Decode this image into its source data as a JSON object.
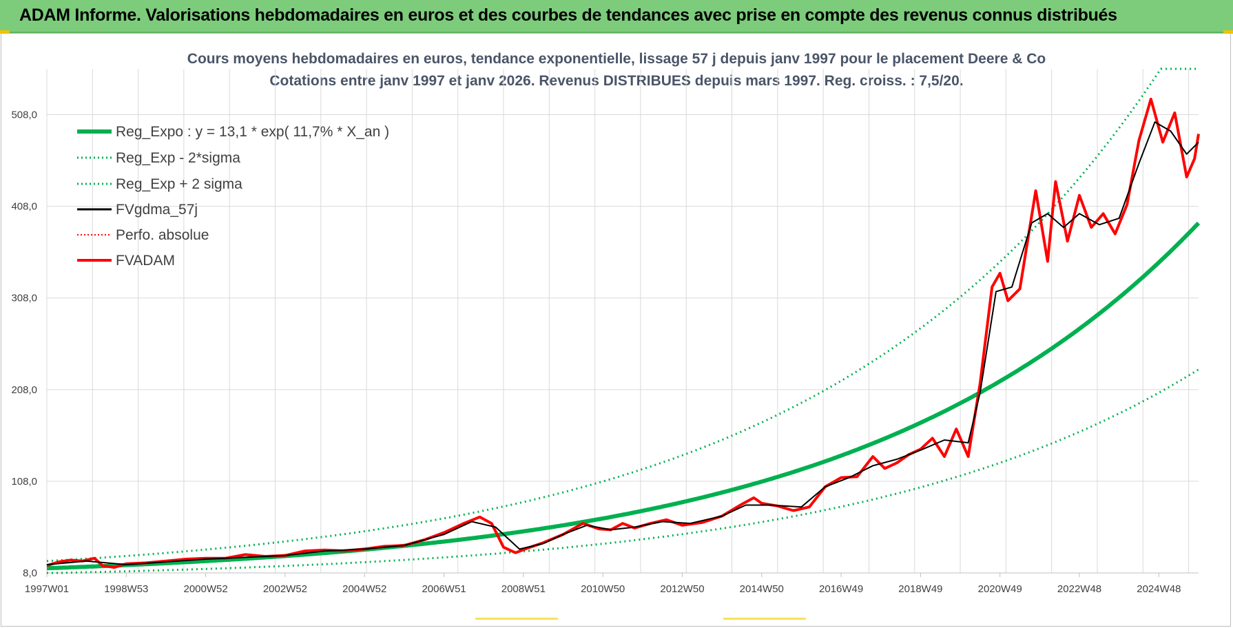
{
  "header": {
    "title": "ADAM Informe. Valorisations hebdomadaires en euros et des courbes de tendances avec prise en compte des revenus connus distribués"
  },
  "colors": {
    "banner": "#7ccc7c",
    "reg_expo": "#00b050",
    "sigma": "#00b050",
    "fvgdma": "#000000",
    "perfo": "#ff0000",
    "fvadam": "#ff0000",
    "grid": "#d9d9d9"
  },
  "chart_data": {
    "type": "line",
    "title": [
      "Cours moyens hebdomadaires en euros, tendance exponentielle, lissage 57 j depuis janv 1997 pour le placement Deere & Co",
      "Cotations entre janv 1997 et janv 2026. Revenus DISTRIBUES depuis mars 1997.  Reg. croiss. : 7,5/20."
    ],
    "xlabel": "",
    "ylabel": "",
    "x_range": [
      1997.0,
      2026.0
    ],
    "ylim": [
      8.0,
      558.0
    ],
    "y_ticks": [
      "8,0",
      "108,0",
      "208,0",
      "308,0",
      "408,0",
      "508,0"
    ],
    "y_tick_values": [
      8,
      108,
      208,
      308,
      408,
      508
    ],
    "x_ticks": [
      "1997W01",
      "1998W53",
      "2000W52",
      "2002W52",
      "2004W52",
      "2006W51",
      "2008W51",
      "2010W50",
      "2012W50",
      "2014W50",
      "2016W49",
      "2018W49",
      "2020W49",
      "2022W48",
      "2024W48"
    ],
    "x_tick_values": [
      1997.0,
      1999.0,
      2001.0,
      2003.0,
      2005.0,
      2007.0,
      2009.0,
      2011.0,
      2013.0,
      2015.0,
      2017.0,
      2019.0,
      2021.0,
      2023.0,
      2025.0
    ],
    "grid": true,
    "legend_position": "top-left",
    "legend": [
      {
        "key": "reg",
        "label": "Reg_Expo : y = 13,1 * exp( 11,7% *  X_an )"
      },
      {
        "key": "low",
        "label": "Reg_Exp - 2*sigma"
      },
      {
        "key": "high",
        "label": "Reg_Exp + 2 sigma"
      },
      {
        "key": "gdma",
        "label": "FVgdma_57j"
      },
      {
        "key": "perfo",
        "label": "Perfo. absolue"
      },
      {
        "key": "fvadam",
        "label": "FVADAM"
      }
    ],
    "regression": {
      "a": 13.1,
      "b": 0.117,
      "x0": 1997.0,
      "low_factor": 0.59,
      "high_factor": 1.6
    },
    "series": [
      {
        "name": "FVADAM",
        "x": [
          1997.0,
          1997.3,
          1997.6,
          1997.9,
          1998.2,
          1998.4,
          1998.7,
          1999.0,
          1999.5,
          2000.0,
          2000.5,
          2001.0,
          2001.5,
          2002.0,
          2002.5,
          2003.0,
          2003.5,
          2004.0,
          2004.5,
          2005.0,
          2005.5,
          2006.0,
          2006.5,
          2007.0,
          2007.5,
          2007.9,
          2008.2,
          2008.5,
          2008.8,
          2009.1,
          2009.5,
          2010.0,
          2010.5,
          2010.9,
          2011.2,
          2011.5,
          2011.8,
          2012.2,
          2012.6,
          2013.0,
          2013.5,
          2014.0,
          2014.5,
          2014.8,
          2015.0,
          2015.4,
          2015.8,
          2016.2,
          2016.6,
          2017.0,
          2017.4,
          2017.8,
          2018.1,
          2018.4,
          2018.7,
          2019.0,
          2019.3,
          2019.6,
          2019.9,
          2020.2,
          2020.5,
          2020.8,
          2021.0,
          2021.2,
          2021.5,
          2021.9,
          2022.2,
          2022.4,
          2022.7,
          2023.0,
          2023.3,
          2023.6,
          2023.9,
          2024.2,
          2024.5,
          2024.8,
          2025.1,
          2025.4,
          2025.7,
          2025.9,
          2026.0
        ],
        "values": [
          16,
          20,
          22,
          21,
          24,
          16,
          14,
          18,
          19,
          21,
          23,
          24,
          24,
          28,
          26,
          27,
          32,
          33,
          32,
          34,
          37,
          38,
          44,
          52,
          62,
          69,
          62,
          36,
          30,
          35,
          41,
          50,
          62,
          56,
          55,
          62,
          57,
          62,
          66,
          60,
          63,
          70,
          83,
          90,
          84,
          81,
          76,
          80,
          102,
          112,
          113,
          135,
          122,
          128,
          137,
          143,
          155,
          135,
          165,
          135,
          215,
          320,
          335,
          305,
          318,
          425,
          348,
          435,
          370,
          420,
          385,
          400,
          378,
          410,
          480,
          525,
          478,
          510,
          440,
          460,
          487
        ]
      },
      {
        "name": "FVgdma_57j",
        "x": [
          1997.0,
          1998.0,
          1999.0,
          2000.0,
          2001.0,
          2002.0,
          2003.0,
          2004.0,
          2005.0,
          2006.0,
          2007.0,
          2007.7,
          2008.3,
          2008.9,
          2009.5,
          2010.0,
          2010.6,
          2011.2,
          2011.8,
          2012.5,
          2013.2,
          2014.0,
          2014.6,
          2015.2,
          2016.0,
          2016.6,
          2017.2,
          2017.8,
          2018.4,
          2019.0,
          2019.6,
          2020.2,
          2020.5,
          2020.9,
          2021.3,
          2021.8,
          2022.2,
          2022.6,
          2023.0,
          2023.5,
          2024.0,
          2024.5,
          2024.9,
          2025.3,
          2025.7,
          2026.0
        ],
        "values": [
          17,
          21,
          17,
          20,
          23,
          25,
          27,
          32,
          34,
          38,
          50,
          64,
          58,
          34,
          40,
          50,
          60,
          55,
          58,
          64,
          62,
          70,
          82,
          82,
          80,
          102,
          112,
          125,
          132,
          142,
          153,
          150,
          205,
          315,
          320,
          390,
          400,
          385,
          400,
          388,
          395,
          455,
          500,
          490,
          465,
          478
        ]
      }
    ]
  }
}
